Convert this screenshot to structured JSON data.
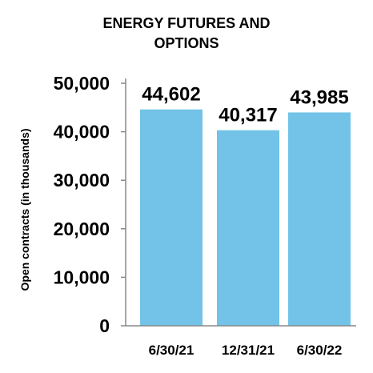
{
  "chart_data": {
    "type": "bar",
    "title_lines": [
      "ENERGY FUTURES AND",
      "OPTIONS"
    ],
    "xlabel": "",
    "ylabel": "Open contracts (in thousands)",
    "categories": [
      "6/30/21",
      "12/31/21",
      "6/30/22"
    ],
    "values": [
      44602,
      40317,
      43985
    ],
    "data_labels": [
      "44,602",
      "40,317",
      "43,985"
    ],
    "ylim": [
      0,
      50000
    ],
    "yticks": [
      0,
      10000,
      20000,
      30000,
      40000,
      50000
    ],
    "ytick_labels": [
      "0",
      "10,000",
      "20,000",
      "30,000",
      "40,000",
      "50,000"
    ],
    "grid": false,
    "legend": "none",
    "colors": {
      "bar": "#72c3e7",
      "axis": "#888888",
      "text": "#000000"
    }
  }
}
